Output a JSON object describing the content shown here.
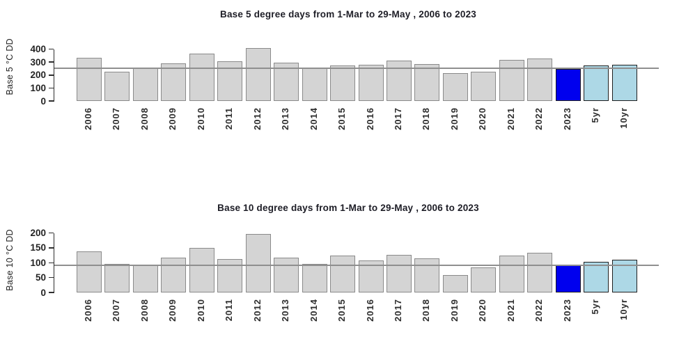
{
  "colors": {
    "background": "#ffffff",
    "title_text": "#1d1d26",
    "axis_text": "#232323",
    "axis_line": "#2e2e2e",
    "bar_default_fill": "#d4d4d4",
    "bar_default_border": "#8a8a8a",
    "bar_highlight_border": "#1f1f1f",
    "reference_line": "#8f8f8f",
    "current_year_fill": "#0000EE",
    "average_fill": "#ADD8E6"
  },
  "chart_data": [
    {
      "type": "bar",
      "title": "Base 5 degree days from 1-Mar to 29-May , 2006 to 2023",
      "ylabel": "Base 5 °C DD",
      "xlabel": "",
      "categories": [
        "2006",
        "2007",
        "2008",
        "2009",
        "2010",
        "2011",
        "2012",
        "2013",
        "2014",
        "2015",
        "2016",
        "2017",
        "2018",
        "2019",
        "2020",
        "2021",
        "2022",
        "2023",
        "5yr",
        "10yr"
      ],
      "values": [
        332,
        228,
        260,
        292,
        364,
        304,
        410,
        296,
        252,
        272,
        280,
        312,
        284,
        216,
        226,
        316,
        328,
        248,
        274,
        277
      ],
      "yticks": [
        0,
        100,
        200,
        300,
        400
      ],
      "ylim": [
        0,
        415
      ],
      "grid": false,
      "legend": null,
      "reference_line": 252,
      "highlight_fills": {
        "2023": "#0000EE",
        "5yr": "#ADD8E6",
        "10yr": "#ADD8E6"
      }
    },
    {
      "type": "bar",
      "title": "Base 10 degree days from 1-Mar to 29-May , 2006 to 2023",
      "ylabel": "Base 10 °C DD",
      "xlabel": "",
      "categories": [
        "2006",
        "2007",
        "2008",
        "2009",
        "2010",
        "2011",
        "2012",
        "2013",
        "2014",
        "2015",
        "2016",
        "2017",
        "2018",
        "2019",
        "2020",
        "2021",
        "2022",
        "2023",
        "5yr",
        "10yr"
      ],
      "values": [
        138,
        96,
        92,
        117,
        150,
        113,
        196,
        117,
        96,
        124,
        107,
        126,
        115,
        58,
        85,
        123,
        134,
        92,
        104,
        110
      ],
      "yticks": [
        0,
        50,
        100,
        150,
        200
      ],
      "ylim": [
        0,
        205
      ],
      "grid": false,
      "legend": null,
      "reference_line": 91,
      "highlight_fills": {
        "2023": "#0000EE",
        "5yr": "#ADD8E6",
        "10yr": "#ADD8E6"
      }
    }
  ]
}
